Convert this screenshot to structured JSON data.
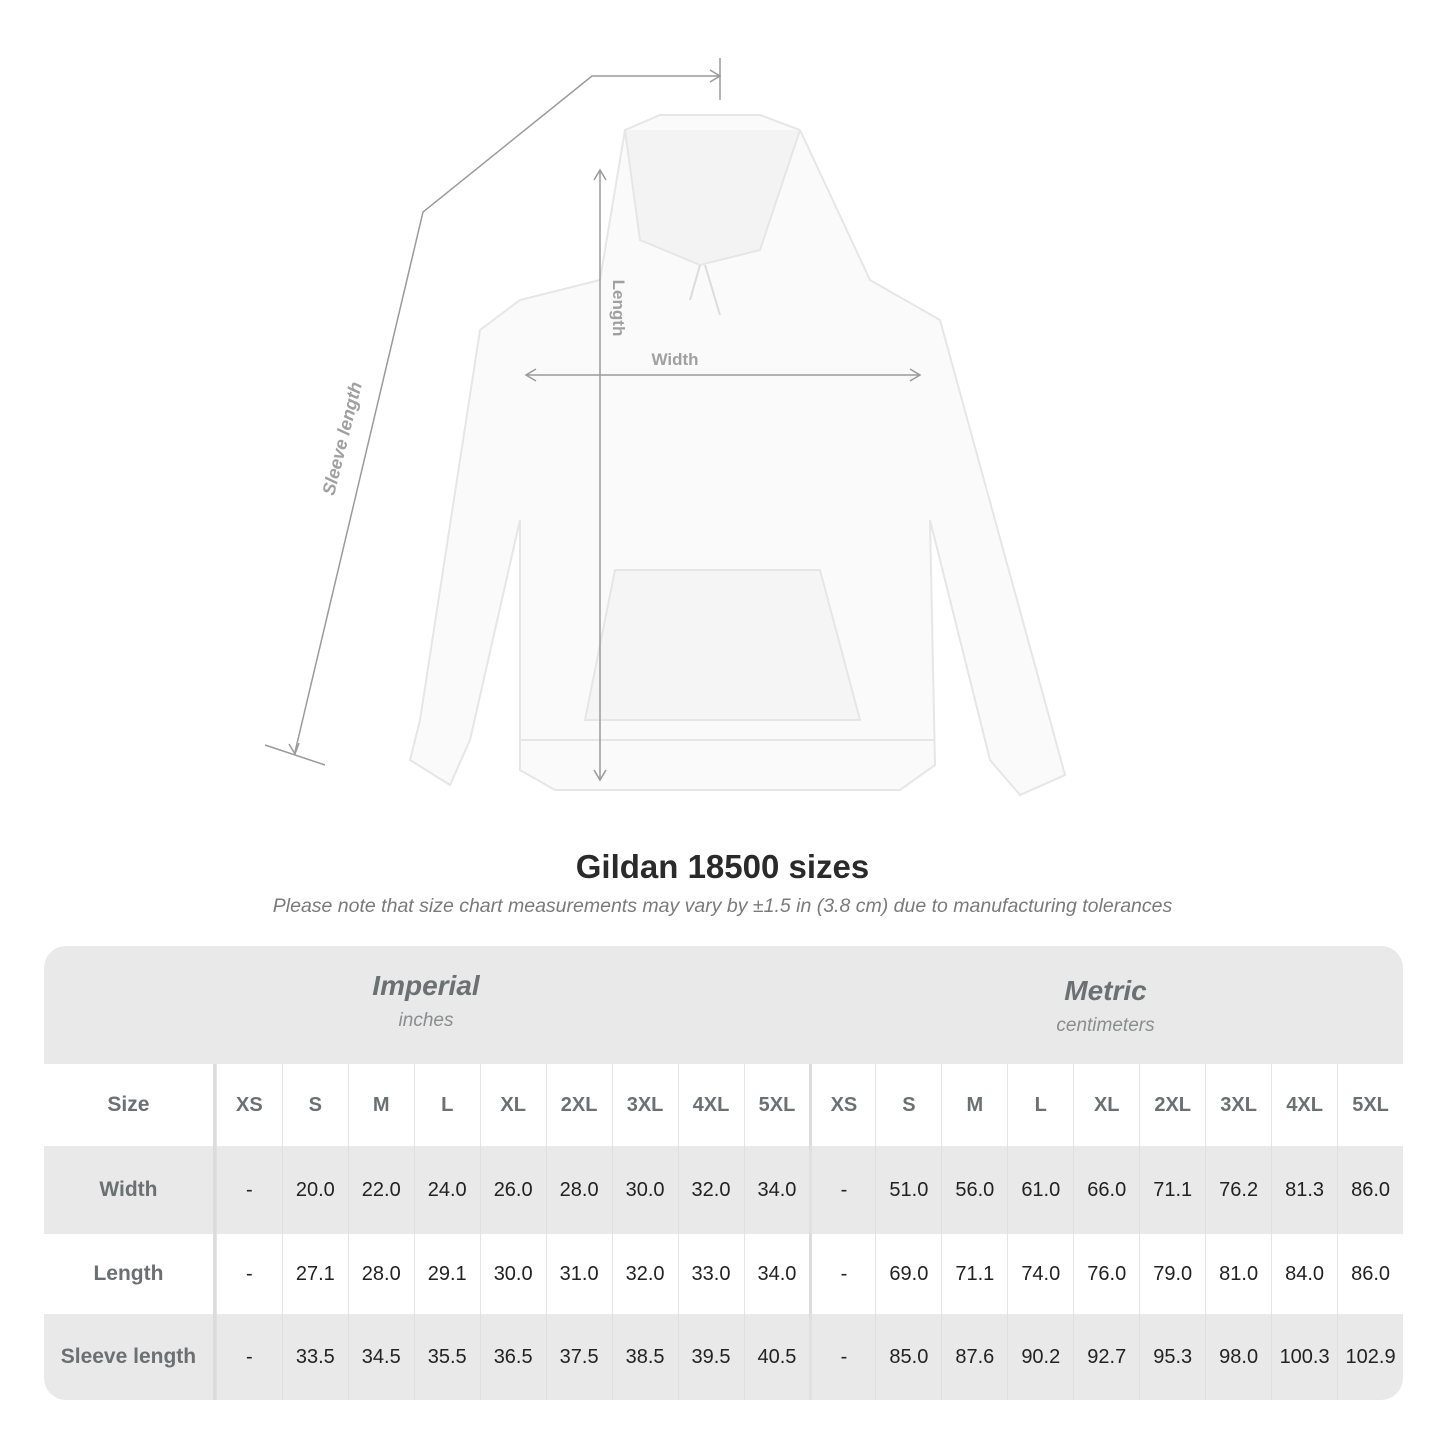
{
  "illustration": {
    "labels": {
      "sleeve": "Sleeve length",
      "length": "Length",
      "width": "Width"
    },
    "colors": {
      "garment": "#fafafa",
      "measure_line": "#9a9a9a"
    }
  },
  "title": "Gildan 18500 sizes",
  "note": "Please note that size chart measurements may vary by ±1.5 in (3.8 cm) due to manufacturing tolerances",
  "table": {
    "imperial": {
      "name": "Imperial",
      "unit": "inches"
    },
    "metric": {
      "name": "Metric",
      "unit": "centimeters"
    },
    "size_label": "Size",
    "sizes": [
      "XS",
      "S",
      "M",
      "L",
      "XL",
      "2XL",
      "3XL",
      "4XL",
      "5XL"
    ],
    "rows": [
      {
        "label": "Width",
        "imperial": [
          "-",
          "20.0",
          "22.0",
          "24.0",
          "26.0",
          "28.0",
          "30.0",
          "32.0",
          "34.0"
        ],
        "metric": [
          "-",
          "51.0",
          "56.0",
          "61.0",
          "66.0",
          "71.1",
          "76.2",
          "81.3",
          "86.0"
        ]
      },
      {
        "label": "Length",
        "imperial": [
          "-",
          "27.1",
          "28.0",
          "29.1",
          "30.0",
          "31.0",
          "32.0",
          "33.0",
          "34.0"
        ],
        "metric": [
          "-",
          "69.0",
          "71.1",
          "74.0",
          "76.0",
          "79.0",
          "81.0",
          "84.0",
          "86.0"
        ]
      },
      {
        "label": "Sleeve length",
        "imperial": [
          "-",
          "33.5",
          "34.5",
          "35.5",
          "36.5",
          "37.5",
          "38.5",
          "39.5",
          "40.5"
        ],
        "metric": [
          "-",
          "85.0",
          "87.6",
          "90.2",
          "92.7",
          "95.3",
          "98.0",
          "100.3",
          "102.9"
        ]
      }
    ],
    "colors": {
      "band": "#e9e9e9",
      "label_text": "#6b7073"
    }
  }
}
